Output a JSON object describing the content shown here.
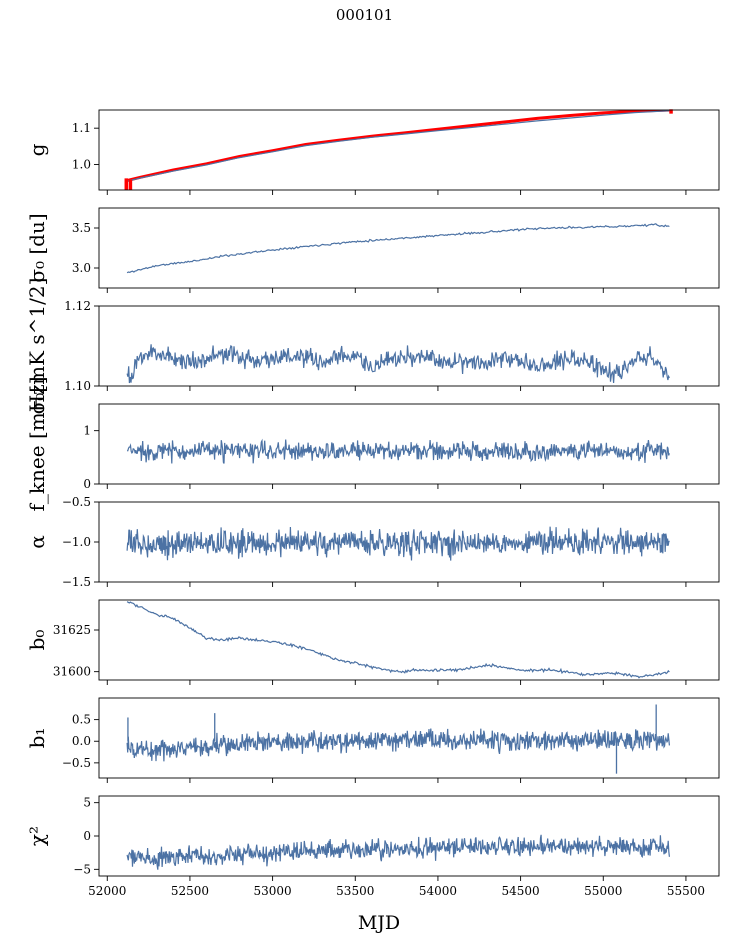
{
  "figure": {
    "title": "000101"
  },
  "chart_data": {
    "type": "line",
    "title": "000101",
    "xlabel": "MJD",
    "xlim": [
      51950,
      55700
    ],
    "x_ticks": [
      52000,
      52500,
      53000,
      53500,
      54000,
      54500,
      55000,
      55500
    ],
    "x_tick_labels": [
      "52000",
      "52500",
      "53000",
      "53500",
      "54000",
      "54500",
      "55000",
      "55500"
    ],
    "line_color": "#4c72a4",
    "accent_color": "#ff0000",
    "panels": [
      {
        "key": "g",
        "ylabel": "g",
        "ylim": [
          0.93,
          1.15
        ],
        "yticks": [
          1.0,
          1.1
        ],
        "ytick_labels": [
          "1.0",
          "1.1"
        ],
        "series": [
          {
            "style": "red",
            "x": [
              52110,
              52200,
              52400,
              52600,
              52800,
              53000,
              53200,
              53400,
              53600,
              53800,
              54000,
              54200,
              54400,
              54600,
              54800,
              55000,
              55200,
              55410
            ],
            "y": [
              0.955,
              0.965,
              0.985,
              1.002,
              1.022,
              1.038,
              1.055,
              1.067,
              1.078,
              1.087,
              1.097,
              1.107,
              1.117,
              1.127,
              1.135,
              1.142,
              1.147,
              1.15
            ]
          },
          {
            "style": "blue",
            "x": [
              52110,
              52200,
              52400,
              52600,
              52800,
              53000,
              53200,
              53400,
              53600,
              53800,
              54000,
              54200,
              54400,
              54600,
              54800,
              55000,
              55200,
              55410
            ],
            "y": [
              0.953,
              0.963,
              0.982,
              0.999,
              1.019,
              1.035,
              1.052,
              1.064,
              1.075,
              1.084,
              1.093,
              1.102,
              1.111,
              1.12,
              1.128,
              1.136,
              1.143,
              1.148
            ]
          }
        ],
        "jumps": [
          [
            52115,
            0.93,
            0.962
          ],
          [
            52140,
            0.93,
            0.958
          ],
          [
            55410,
            1.14,
            1.152
          ]
        ]
      },
      {
        "key": "sigma0_du",
        "ylabel": "σ₀ [du]",
        "ylim": [
          2.75,
          3.75
        ],
        "yticks": [
          3.0,
          3.5
        ],
        "ytick_labels": [
          "3.0",
          "3.5"
        ],
        "series": [
          {
            "style": "blue",
            "x": [
              52120,
              52300,
              52500,
              52700,
              52900,
              53100,
              53300,
              53500,
              53700,
              53900,
              54100,
              54300,
              54500,
              54700,
              54900,
              55100,
              55300,
              55400
            ],
            "y": [
              2.94,
              3.03,
              3.08,
              3.15,
              3.2,
              3.25,
              3.29,
              3.33,
              3.36,
              3.39,
              3.42,
              3.45,
              3.48,
              3.5,
              3.51,
              3.52,
              3.54,
              3.52
            ],
            "noise": 0.006,
            "steps": 400,
            "seed": 11
          }
        ]
      },
      {
        "key": "sigma0_mk",
        "ylabel": "σ₀[mK s^1/2]",
        "ylim": [
          1.1,
          1.12
        ],
        "yticks": [
          1.1,
          1.12
        ],
        "ytick_labels": [
          "1.10",
          "1.12"
        ],
        "series": [
          {
            "style": "blue",
            "x": [
              52120,
              52140,
              52200,
              52300,
              52400,
              52500,
              52700,
              52900,
              53100,
              53300,
              53500,
              53600,
              53800,
              54000,
              54200,
              54400,
              54600,
              54800,
              54900,
              55000,
              55100,
              55200,
              55300,
              55400
            ],
            "y": [
              1.1048,
              1.101,
              1.1075,
              1.1085,
              1.107,
              1.106,
              1.108,
              1.1065,
              1.1075,
              1.106,
              1.108,
              1.1045,
              1.1075,
              1.1065,
              1.106,
              1.107,
              1.1055,
              1.107,
              1.106,
              1.104,
              1.103,
              1.1075,
              1.107,
              1.1025
            ],
            "noise": 0.0012,
            "steps": 700,
            "seed": 23
          }
        ]
      },
      {
        "key": "fknee",
        "ylabel": "f_knee [mHz]",
        "ylim": [
          0,
          1.5
        ],
        "yticks": [
          0,
          1
        ],
        "ytick_labels": [
          "0",
          "1"
        ],
        "series": [
          {
            "style": "blue",
            "x": [
              52120,
              55400
            ],
            "y": [
              0.62,
              0.62
            ],
            "noise": 0.09,
            "steps": 800,
            "seed": 37
          }
        ]
      },
      {
        "key": "alpha",
        "ylabel": "α",
        "ylim": [
          -1.5,
          -0.5
        ],
        "yticks": [
          -1.5,
          -1.0,
          -0.5
        ],
        "ytick_labels": [
          "−1.5",
          "−1.0",
          "−0.5"
        ],
        "series": [
          {
            "style": "blue",
            "x": [
              52120,
              55400
            ],
            "y": [
              -1.02,
              -1.0
            ],
            "noise": 0.08,
            "steps": 900,
            "seed": 53
          }
        ]
      },
      {
        "key": "b0",
        "ylabel": "b₀",
        "ylim": [
          31595,
          31643
        ],
        "yticks": [
          31600,
          31625
        ],
        "ytick_labels": [
          "31600",
          "31625"
        ],
        "series": [
          {
            "style": "blue",
            "x": [
              52120,
              52200,
              52300,
              52400,
              52500,
              52600,
              52700,
              52800,
              53000,
              53200,
              53400,
              53600,
              53750,
              53900,
              54100,
              54300,
              54500,
              54700,
              54900,
              55000,
              55100,
              55200,
              55300,
              55400
            ],
            "y": [
              31642,
              31639,
              31634,
              31632,
              31626,
              31620,
              31619,
              31620,
              31618,
              31614,
              31607,
              31603,
              31600,
              31601,
              31601,
              31604,
              31601,
              31601,
              31598,
              31599,
              31599,
              31597,
              31598,
              31600
            ],
            "noise": 0.4,
            "steps": 500,
            "seed": 71
          }
        ]
      },
      {
        "key": "b1",
        "ylabel": "b₁",
        "ylim": [
          -0.85,
          1.0
        ],
        "yticks": [
          -0.5,
          0.0,
          0.5
        ],
        "ytick_labels": [
          "−0.5",
          "0.0",
          "0.5"
        ],
        "series": [
          {
            "style": "blue",
            "x": [
              52120,
              52300,
              52600,
              53000,
              53500,
              54000,
              54500,
              55000,
              55400
            ],
            "y": [
              -0.15,
              -0.2,
              -0.1,
              0.0,
              0.0,
              0.05,
              0.0,
              0.05,
              0.0
            ],
            "noise": 0.12,
            "steps": 900,
            "seed": 89
          },
          {
            "style": "blue-spikes",
            "x": [
              52125,
              52650,
              55080,
              55320
            ],
            "y": [
              0.55,
              0.65,
              -0.75,
              0.85
            ]
          }
        ]
      },
      {
        "key": "chi2",
        "ylabel": "χ²",
        "ylim": [
          -6,
          6
        ],
        "yticks": [
          -5,
          0,
          5
        ],
        "ytick_labels": [
          "−5",
          "0",
          "5"
        ],
        "series": [
          {
            "style": "blue",
            "x": [
              52120,
              52300,
              52500,
              52800,
              53200,
              53600,
              54000,
              54400,
              54800,
              55200,
              55400
            ],
            "y": [
              -3.0,
              -3.5,
              -3.0,
              -2.7,
              -2.2,
              -2.0,
              -1.7,
              -1.6,
              -1.6,
              -1.7,
              -1.8
            ],
            "noise": 0.7,
            "steps": 900,
            "seed": 97
          }
        ]
      }
    ]
  }
}
